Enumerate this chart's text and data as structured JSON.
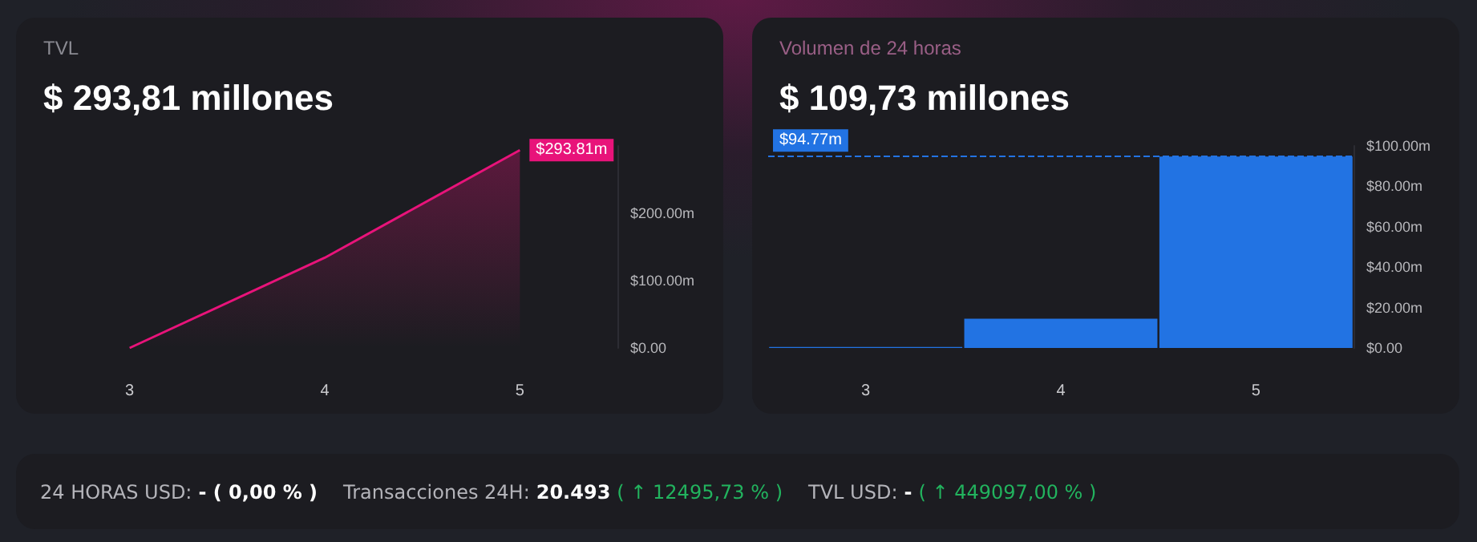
{
  "chart_data": [
    {
      "type": "area",
      "title": "TVL",
      "subtitle": "$ 293,81 millones",
      "categories": [
        "3",
        "4",
        "5"
      ],
      "series": [
        {
          "color": "#e8137a",
          "values": [
            0,
            134,
            293.81
          ],
          "value_labels": [
            null,
            null,
            "$293.81m"
          ]
        }
      ],
      "ylim": [
        0,
        300
      ],
      "yticks": [
        {
          "value": 0,
          "label": "$0.00"
        },
        {
          "value": 100,
          "label": "$100.00m"
        },
        {
          "value": 200,
          "label": "$200.00m"
        }
      ],
      "grid": false
    },
    {
      "type": "bar",
      "title": "Volumen de 24 horas",
      "subtitle": "$ 109,73 millones",
      "categories": [
        "3",
        "4",
        "5"
      ],
      "series": [
        {
          "color": "#2273e3",
          "values": [
            0.5,
            14.5,
            94.77
          ]
        }
      ],
      "ylim": [
        0,
        100
      ],
      "yticks": [
        {
          "value": 0,
          "label": "$0.00"
        },
        {
          "value": 20,
          "label": "$20.00m"
        },
        {
          "value": 40,
          "label": "$40.00m"
        },
        {
          "value": 60,
          "label": "$60.00m"
        },
        {
          "value": 80,
          "label": "$80.00m"
        },
        {
          "value": 100,
          "label": "$100.00m"
        }
      ],
      "ref_lines": [
        {
          "axis": "y",
          "value": 94.77,
          "label": "$94.77m",
          "color": "#2273e3",
          "line_style": "dashed"
        }
      ]
    },
    {
      "type": "other",
      "annotations": [
        "24 HORAS USD:",
        "- ( 0,00 % )",
        "Transacciones 24H:",
        "20.493",
        "( ↑ 12495,73 % )",
        "TVL USD:",
        "-",
        "( ↑ 449097,00 % )"
      ]
    }
  ]
}
